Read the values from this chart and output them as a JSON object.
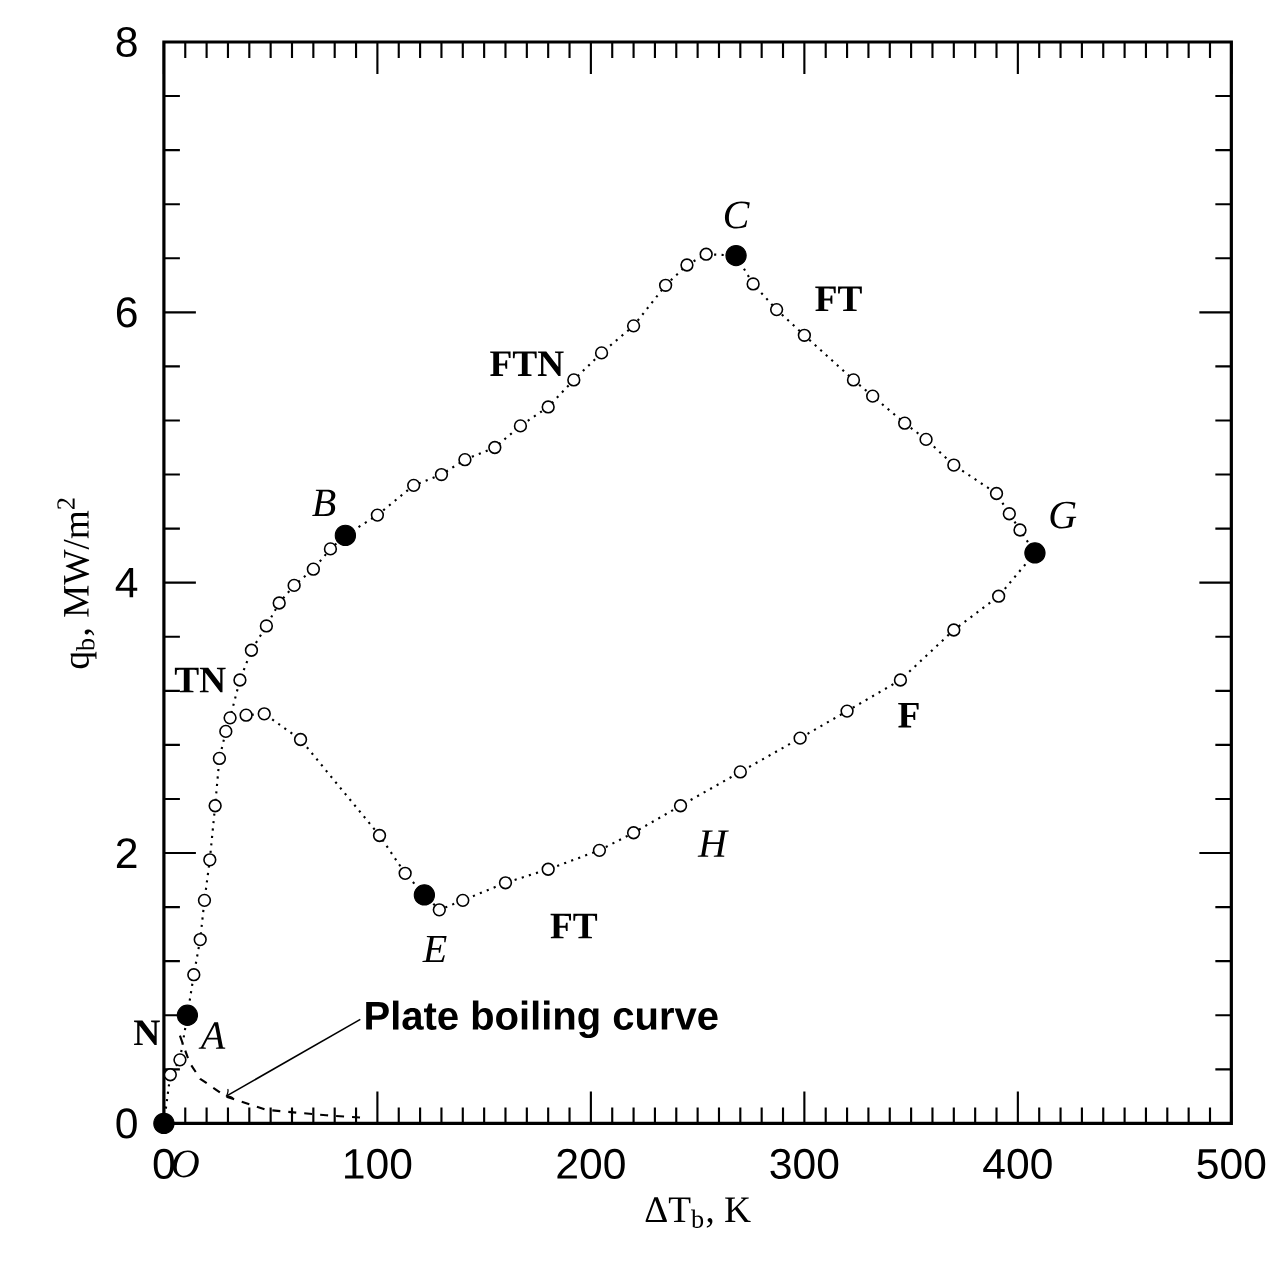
{
  "chart_data": {
    "type": "line",
    "xlabel": "ΔT$_{b}$, K",
    "ylabel": "q$_{b}$, MW/m$^{2}$",
    "xlim": [
      0,
      500
    ],
    "ylim": [
      0,
      8
    ],
    "xticks": [
      0,
      100,
      200,
      300,
      400,
      500
    ],
    "yticks": [
      0,
      2,
      4,
      6,
      8
    ],
    "series": [
      {
        "color": "#000000",
        "marker": "circle",
        "line_style": "dotted",
        "x": [
          0,
          3,
          7.5,
          11,
          14,
          17,
          19,
          21.5,
          24,
          26,
          29,
          31,
          35.6,
          41,
          48,
          54,
          61,
          70,
          78,
          85,
          100,
          117,
          130,
          141,
          155,
          167,
          180,
          192,
          205,
          220,
          235,
          245,
          254,
          268,
          276,
          287,
          300,
          323,
          332,
          347,
          357,
          370,
          390,
          396,
          401,
          408,
          391,
          370,
          345,
          320,
          298,
          270,
          242,
          220,
          204,
          180,
          160,
          140,
          129,
          122,
          113,
          101,
          64,
          47,
          38.5
        ],
        "values": [
          0,
          0.36,
          0.47,
          0.8,
          1.1,
          1.36,
          1.65,
          1.95,
          2.35,
          2.7,
          2.9,
          3.0,
          3.28,
          3.5,
          3.68,
          3.85,
          3.98,
          4.1,
          4.25,
          4.35,
          4.5,
          4.72,
          4.8,
          4.91,
          5.0,
          5.16,
          5.3,
          5.5,
          5.7,
          5.9,
          6.2,
          6.35,
          6.43,
          6.42,
          6.21,
          6.02,
          5.83,
          5.5,
          5.38,
          5.18,
          5.06,
          4.87,
          4.66,
          4.51,
          4.39,
          4.22,
          3.9,
          3.65,
          3.28,
          3.05,
          2.85,
          2.6,
          2.35,
          2.15,
          2.02,
          1.88,
          1.78,
          1.65,
          1.58,
          1.69,
          1.85,
          2.13,
          2.84,
          3.03,
          3.02
        ]
      },
      {
        "type": "scatter",
        "color": "#000000",
        "marker": "circle",
        "x": [
          0,
          11,
          85,
          268,
          408,
          122
        ],
        "values": [
          0,
          0.8,
          4.35,
          6.42,
          4.22,
          1.69
        ]
      },
      {
        "type": "line",
        "color": "#000000",
        "marker": "none",
        "line_style": "dashed",
        "x": [
          7.5,
          12,
          17,
          29,
          48,
          76,
          95
        ],
        "values": [
          0.65,
          0.45,
          0.33,
          0.2,
          0.1,
          0.06,
          0.04
        ]
      }
    ],
    "annotations": [
      "O",
      "A",
      "B",
      "C",
      "G",
      "E",
      "H",
      "N",
      "TN",
      "FTN",
      "FT",
      "F",
      "FT",
      {
        "text": "Plate boiling curve",
        "x": 29,
        "y": 0.2
      }
    ]
  }
}
